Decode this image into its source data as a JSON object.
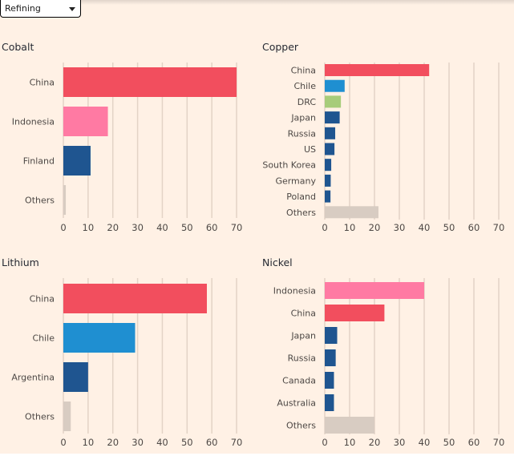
{
  "dropdown": {
    "selected": "Refining"
  },
  "colors": {
    "china": "#f24e5e",
    "indonesia": "#ff7aa3",
    "chile": "#1f8fd1",
    "drc": "#a7cc7a",
    "other_country": "#1f5590",
    "others": "#d8ccc2",
    "gridline": "#e3d3c6"
  },
  "chart_data": [
    {
      "type": "bar",
      "orientation": "horizontal",
      "title": "Cobalt",
      "categories": [
        "China",
        "Indonesia",
        "Finland",
        "Others"
      ],
      "values": [
        70,
        18,
        11,
        1
      ],
      "color_keys": [
        "china",
        "indonesia",
        "other_country",
        "others"
      ],
      "xlim": [
        0,
        70
      ],
      "xticks": [
        "0",
        "10",
        "20",
        "30",
        "40",
        "50",
        "60",
        "70"
      ],
      "grid": true
    },
    {
      "type": "bar",
      "orientation": "horizontal",
      "title": "Copper",
      "categories": [
        "China",
        "Chile",
        "DRC",
        "Japan",
        "Russia",
        "US",
        "South Korea",
        "Germany",
        "Poland",
        "Others"
      ],
      "values": [
        42,
        8,
        6.5,
        6,
        4.2,
        3.9,
        2.6,
        2.4,
        2.3,
        21.6
      ],
      "color_keys": [
        "china",
        "chile",
        "drc",
        "other_country",
        "other_country",
        "other_country",
        "other_country",
        "other_country",
        "other_country",
        "others"
      ],
      "xlim": [
        0,
        70
      ],
      "xticks": [
        "0",
        "10",
        "20",
        "30",
        "40",
        "50",
        "60",
        "70"
      ],
      "grid": true
    },
    {
      "type": "bar",
      "orientation": "horizontal",
      "title": "Lithium",
      "categories": [
        "China",
        "Chile",
        "Argentina",
        "Others"
      ],
      "values": [
        58,
        29,
        10,
        3
      ],
      "color_keys": [
        "china",
        "chile",
        "other_country",
        "others"
      ],
      "xlim": [
        0,
        70
      ],
      "xticks": [
        "0",
        "10",
        "20",
        "30",
        "40",
        "50",
        "60",
        "70"
      ],
      "grid": true
    },
    {
      "type": "bar",
      "orientation": "horizontal",
      "title": "Nickel",
      "categories": [
        "Indonesia",
        "China",
        "Japan",
        "Russia",
        "Canada",
        "Australia",
        "Others"
      ],
      "values": [
        40,
        24,
        5,
        4.4,
        3.7,
        3.7,
        20
      ],
      "color_keys": [
        "indonesia",
        "china",
        "other_country",
        "other_country",
        "other_country",
        "other_country",
        "others"
      ],
      "xlim": [
        0,
        70
      ],
      "xticks": [
        "0",
        "10",
        "20",
        "30",
        "40",
        "50",
        "60",
        "70"
      ],
      "grid": true
    }
  ]
}
